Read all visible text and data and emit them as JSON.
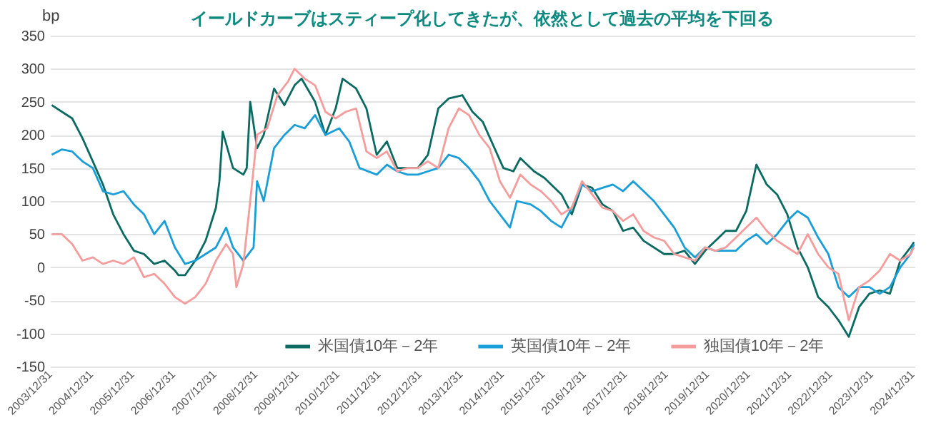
{
  "chart_data": {
    "type": "line",
    "title": "イールドカーブはスティープ化してきたが、依然として過去の平均を下回る",
    "ylabel": "bp",
    "xlim": [
      "2003-12-31",
      "2025-01-20"
    ],
    "xticks": [
      {
        "value": "2003-12-31",
        "label": "2003/12/31"
      },
      {
        "value": "2004-12-31",
        "label": "2004/12/31"
      },
      {
        "value": "2005-12-31",
        "label": "2005/12/31"
      },
      {
        "value": "2006-12-31",
        "label": "2006/12/31"
      },
      {
        "value": "2007-12-31",
        "label": "2007/12/31"
      },
      {
        "value": "2008-12-31",
        "label": "2008/12/31"
      },
      {
        "value": "2009-12-31",
        "label": "2009/12/31"
      },
      {
        "value": "2010-12-31",
        "label": "2010/12/31"
      },
      {
        "value": "2011-12-31",
        "label": "2011/12/31"
      },
      {
        "value": "2012-12-31",
        "label": "2012/12/31"
      },
      {
        "value": "2013-12-31",
        "label": "2013/12/31"
      },
      {
        "value": "2014-12-31",
        "label": "2014/12/31"
      },
      {
        "value": "2015-12-31",
        "label": "2015/12/31"
      },
      {
        "value": "2016-12-31",
        "label": "2016/12/31"
      },
      {
        "value": "2017-12-31",
        "label": "2017/12/31"
      },
      {
        "value": "2018-12-31",
        "label": "2018/12/31"
      },
      {
        "value": "2019-12-31",
        "label": "2019/12/31"
      },
      {
        "value": "2020-12-31",
        "label": "2020/12/31"
      },
      {
        "value": "2021-12-31",
        "label": "2021/12/31"
      },
      {
        "value": "2022-12-31",
        "label": "2022/12/31"
      },
      {
        "value": "2023-12-31",
        "label": "2023/12/31"
      },
      {
        "value": "2024-12-31",
        "label": "2024/12/31"
      }
    ],
    "ylim": [
      -150,
      350
    ],
    "yticks": [
      -150,
      -100,
      -50,
      0,
      50,
      100,
      150,
      200,
      250,
      300,
      350
    ],
    "grid": "y",
    "legend": "bottom",
    "series": [
      {
        "name": "米国債10年－2年",
        "color": "#0b6b63",
        "x": [
          "2004-01",
          "2004-04",
          "2004-07",
          "2004-10",
          "2005-01",
          "2005-04",
          "2005-07",
          "2005-10",
          "2006-01",
          "2006-04",
          "2006-07",
          "2006-10",
          "2007-01",
          "2007-02",
          "2007-04",
          "2007-07",
          "2007-10",
          "2008-01",
          "2008-02",
          "2008-03",
          "2008-06",
          "2008-09",
          "2008-10",
          "2008-11",
          "2009-01",
          "2009-03",
          "2009-06",
          "2009-09",
          "2009-12",
          "2010-02",
          "2010-06",
          "2010-09",
          "2010-12",
          "2011-02",
          "2011-06",
          "2011-09",
          "2011-12",
          "2012-03",
          "2012-06",
          "2012-09",
          "2012-12",
          "2013-03",
          "2013-06",
          "2013-09",
          "2014-01",
          "2014-04",
          "2014-07",
          "2014-10",
          "2015-01",
          "2015-04",
          "2015-06",
          "2015-10",
          "2016-01",
          "2016-06",
          "2016-09",
          "2016-11",
          "2016-12",
          "2017-03",
          "2017-06",
          "2017-09",
          "2017-12",
          "2018-03",
          "2018-06",
          "2018-09",
          "2018-12",
          "2019-03",
          "2019-06",
          "2019-09",
          "2019-12",
          "2020-03",
          "2020-06",
          "2020-09",
          "2020-12",
          "2021-03",
          "2021-06",
          "2021-09",
          "2021-12",
          "2022-03",
          "2022-06",
          "2022-09",
          "2022-12",
          "2023-03",
          "2023-06",
          "2023-09",
          "2023-12",
          "2024-03",
          "2024-06",
          "2024-09",
          "2024-12",
          "2025-01"
        ],
        "values": [
          245,
          235,
          225,
          195,
          160,
          125,
          80,
          50,
          25,
          20,
          5,
          10,
          -5,
          -12,
          -12,
          10,
          40,
          90,
          130,
          205,
          150,
          140,
          150,
          250,
          180,
          200,
          270,
          245,
          275,
          285,
          250,
          200,
          240,
          285,
          270,
          240,
          170,
          190,
          150,
          150,
          150,
          170,
          240,
          255,
          260,
          235,
          220,
          185,
          150,
          145,
          165,
          145,
          135,
          110,
          80,
          110,
          125,
          120,
          95,
          85,
          55,
          60,
          40,
          30,
          20,
          20,
          25,
          5,
          25,
          40,
          55,
          55,
          85,
          155,
          125,
          110,
          80,
          30,
          0,
          -45,
          -60,
          -80,
          -105,
          -60,
          -40,
          -35,
          -40,
          10,
          30,
          38
        ]
      },
      {
        "name": "英国債10年－2年",
        "color": "#1a9ed8",
        "x": [
          "2004-01",
          "2004-04",
          "2004-07",
          "2004-10",
          "2005-01",
          "2005-04",
          "2005-07",
          "2005-10",
          "2006-01",
          "2006-04",
          "2006-07",
          "2006-10",
          "2007-01",
          "2007-04",
          "2007-07",
          "2007-10",
          "2008-01",
          "2008-04",
          "2008-06",
          "2008-09",
          "2008-12",
          "2009-01",
          "2009-03",
          "2009-06",
          "2009-09",
          "2009-12",
          "2010-03",
          "2010-06",
          "2010-09",
          "2011-01",
          "2011-04",
          "2011-07",
          "2011-12",
          "2012-03",
          "2012-06",
          "2012-09",
          "2012-12",
          "2013-03",
          "2013-06",
          "2013-09",
          "2013-12",
          "2014-03",
          "2014-06",
          "2014-09",
          "2014-12",
          "2015-03",
          "2015-05",
          "2015-09",
          "2015-12",
          "2016-03",
          "2016-06",
          "2016-09",
          "2016-12",
          "2017-03",
          "2017-06",
          "2017-09",
          "2017-12",
          "2018-03",
          "2018-06",
          "2018-09",
          "2018-12",
          "2019-03",
          "2019-06",
          "2019-09",
          "2019-12",
          "2020-03",
          "2020-06",
          "2020-09",
          "2020-12",
          "2021-03",
          "2021-06",
          "2021-09",
          "2021-12",
          "2022-03",
          "2022-06",
          "2022-09",
          "2022-12",
          "2023-03",
          "2023-06",
          "2023-09",
          "2023-12",
          "2024-03",
          "2024-06",
          "2024-09",
          "2024-12",
          "2025-01"
        ],
        "values": [
          170,
          178,
          175,
          160,
          150,
          115,
          110,
          115,
          95,
          80,
          50,
          70,
          30,
          5,
          10,
          20,
          30,
          60,
          30,
          10,
          30,
          130,
          100,
          180,
          200,
          215,
          210,
          230,
          200,
          210,
          190,
          150,
          140,
          155,
          145,
          140,
          140,
          145,
          150,
          170,
          165,
          150,
          130,
          100,
          80,
          60,
          100,
          95,
          85,
          70,
          60,
          90,
          125,
          115,
          120,
          125,
          115,
          130,
          115,
          100,
          80,
          60,
          30,
          15,
          30,
          25,
          25,
          25,
          40,
          50,
          35,
          50,
          70,
          85,
          75,
          45,
          20,
          -30,
          -45,
          -30,
          -30,
          -40,
          -30,
          0,
          20,
          35
        ]
      },
      {
        "name": "独国債10年－2年",
        "color": "#f59d9c",
        "x": [
          "2004-01",
          "2004-04",
          "2004-07",
          "2004-10",
          "2005-01",
          "2005-04",
          "2005-07",
          "2005-10",
          "2006-01",
          "2006-04",
          "2006-07",
          "2006-10",
          "2007-01",
          "2007-04",
          "2007-07",
          "2007-10",
          "2008-01",
          "2008-04",
          "2008-06",
          "2008-07",
          "2008-09",
          "2008-11",
          "2009-01",
          "2009-04",
          "2009-07",
          "2009-10",
          "2009-12",
          "2010-03",
          "2010-06",
          "2010-09",
          "2010-12",
          "2011-03",
          "2011-06",
          "2011-09",
          "2011-12",
          "2012-03",
          "2012-06",
          "2012-09",
          "2012-12",
          "2013-03",
          "2013-06",
          "2013-09",
          "2013-12",
          "2014-03",
          "2014-06",
          "2014-09",
          "2014-12",
          "2015-03",
          "2015-06",
          "2015-09",
          "2015-12",
          "2016-03",
          "2016-06",
          "2016-09",
          "2016-12",
          "2017-03",
          "2017-06",
          "2017-09",
          "2017-12",
          "2018-03",
          "2018-06",
          "2018-09",
          "2018-12",
          "2019-03",
          "2019-06",
          "2019-09",
          "2019-12",
          "2020-03",
          "2020-06",
          "2020-09",
          "2020-12",
          "2021-03",
          "2021-06",
          "2021-09",
          "2021-12",
          "2022-03",
          "2022-06",
          "2022-09",
          "2022-12",
          "2023-03",
          "2023-06",
          "2023-09",
          "2023-12",
          "2024-03",
          "2024-06",
          "2024-09",
          "2024-12",
          "2025-01"
        ],
        "values": [
          50,
          50,
          35,
          10,
          15,
          5,
          10,
          5,
          15,
          -15,
          -10,
          -25,
          -45,
          -55,
          -45,
          -25,
          10,
          35,
          20,
          -30,
          5,
          100,
          200,
          210,
          260,
          280,
          300,
          285,
          275,
          235,
          225,
          235,
          240,
          175,
          165,
          175,
          145,
          150,
          150,
          160,
          150,
          210,
          240,
          230,
          200,
          180,
          130,
          105,
          140,
          125,
          115,
          100,
          80,
          90,
          130,
          110,
          90,
          85,
          70,
          80,
          55,
          45,
          40,
          20,
          15,
          10,
          30,
          25,
          30,
          45,
          60,
          75,
          55,
          40,
          30,
          20,
          50,
          20,
          0,
          -10,
          -80,
          -30,
          -20,
          -5,
          20,
          10,
          20,
          30
        ]
      }
    ]
  }
}
